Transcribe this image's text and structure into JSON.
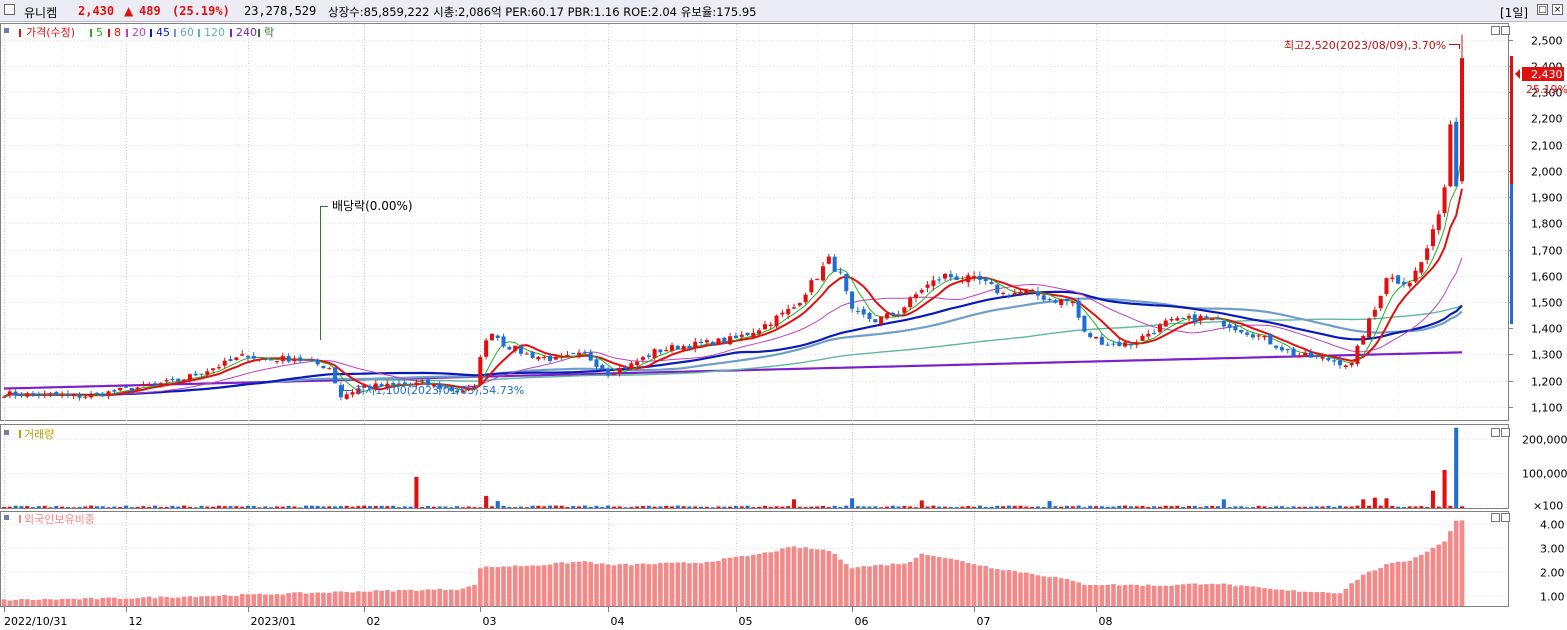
{
  "header": {
    "name": "유니켐",
    "price": "2,430",
    "change_arrow": "▲",
    "change": "489",
    "change_pct": "(25.19%)",
    "volume": "23,278,529",
    "stats": "상장수:85,859,222 시총:2,086억 PER:60.17 PBR:1.16 ROE:2.04 유보율:175.95",
    "period": "[1일]"
  },
  "colors": {
    "up": "#e01010",
    "down": "#1e6ed4",
    "ma5": "#22b022",
    "ma8": "#e01010",
    "ma20": "#c040c0",
    "ma45": "#0a1ab8",
    "ma60": "#6f9ec8",
    "ma120": "#5fb8a0",
    "ma240": "#7a22c8",
    "foreign": "#f28a8a"
  },
  "x_axis_labels": [
    "2022/10/31",
    "12",
    "2023/01",
    "02",
    "03",
    "04",
    "05",
    "06",
    "07",
    "08"
  ],
  "chart_data": {
    "type": "candlestick",
    "price_panel": {
      "legend": [
        "가격(수정)",
        "5",
        "8",
        "20",
        "45",
        "60",
        "120",
        "240",
        "락"
      ],
      "y_ticks": [
        "2,500",
        "2,400",
        "2,300",
        "2,200",
        "2,100",
        "2,000",
        "1,900",
        "1,800",
        "1,700",
        "1,600",
        "1,500",
        "1,400",
        "1,300",
        "1,200",
        "1,100"
      ],
      "ylim": [
        1050,
        2560
      ],
      "current_price_label": "2,430",
      "current_pct_label": "25.19%",
      "annotations": {
        "high": "최고2,520(2023/08/09),3.70%",
        "low": "최저1,100(2023/01/03),54.73%",
        "dividend": "배당락(0.00%)"
      },
      "close_path": [
        [
          0,
          1150
        ],
        [
          14,
          1140
        ],
        [
          30,
          1200
        ],
        [
          38,
          1265
        ],
        [
          42,
          1300
        ],
        [
          44,
          1280
        ],
        [
          50,
          1285
        ],
        [
          56,
          1250
        ],
        [
          58,
          1140
        ],
        [
          62,
          1180
        ],
        [
          66,
          1180
        ],
        [
          72,
          1190
        ],
        [
          78,
          1160
        ],
        [
          81,
          1170
        ],
        [
          82,
          1300
        ],
        [
          84,
          1390
        ],
        [
          86,
          1340
        ],
        [
          90,
          1300
        ],
        [
          95,
          1280
        ],
        [
          100,
          1300
        ],
        [
          104,
          1230
        ],
        [
          108,
          1260
        ],
        [
          112,
          1310
        ],
        [
          116,
          1330
        ],
        [
          120,
          1340
        ],
        [
          126,
          1360
        ],
        [
          130,
          1400
        ],
        [
          136,
          1480
        ],
        [
          140,
          1600
        ],
        [
          142,
          1660
        ],
        [
          144,
          1600
        ],
        [
          146,
          1460
        ],
        [
          150,
          1430
        ],
        [
          154,
          1460
        ],
        [
          158,
          1550
        ],
        [
          162,
          1600
        ],
        [
          168,
          1580
        ],
        [
          172,
          1530
        ],
        [
          176,
          1540
        ],
        [
          180,
          1510
        ],
        [
          184,
          1500
        ],
        [
          186,
          1380
        ],
        [
          190,
          1340
        ],
        [
          194,
          1340
        ],
        [
          200,
          1420
        ],
        [
          206,
          1440
        ],
        [
          210,
          1420
        ],
        [
          216,
          1370
        ],
        [
          222,
          1300
        ],
        [
          228,
          1280
        ],
        [
          232,
          1260
        ],
        [
          234,
          1380
        ],
        [
          236,
          1470
        ],
        [
          238,
          1600
        ],
        [
          240,
          1580
        ],
        [
          242,
          1580
        ],
        [
          244,
          1650
        ],
        [
          246,
          1760
        ],
        [
          248,
          1940
        ],
        [
          250,
          2430
        ]
      ],
      "ma_overlays": [
        "5",
        "8",
        "20",
        "45",
        "60",
        "120",
        "240"
      ]
    },
    "volume_panel": {
      "label": "거래량",
      "y_ticks": [
        "200,000",
        "100,000",
        "×100"
      ],
      "ylim": [
        0,
        240000
      ],
      "spikes": [
        [
          71,
          90000
        ],
        [
          83,
          35000
        ],
        [
          85,
          20000
        ],
        [
          136,
          25000
        ],
        [
          146,
          28000
        ],
        [
          158,
          22000
        ],
        [
          180,
          20000
        ],
        [
          210,
          25000
        ],
        [
          234,
          25000
        ],
        [
          236,
          30000
        ],
        [
          238,
          28000
        ],
        [
          246,
          50000
        ],
        [
          248,
          110000
        ],
        [
          250,
          232000
        ]
      ]
    },
    "foreign_panel": {
      "label": "외국인보유비중",
      "y_ticks": [
        "4.00",
        "3.00",
        "2.00",
        "1.00"
      ],
      "ylim": [
        0.6,
        4.5
      ],
      "path": [
        [
          0,
          0.85
        ],
        [
          20,
          0.92
        ],
        [
          40,
          1.05
        ],
        [
          60,
          1.2
        ],
        [
          78,
          1.3
        ],
        [
          81,
          1.45
        ],
        [
          82,
          2.2
        ],
        [
          92,
          2.3
        ],
        [
          100,
          2.45
        ],
        [
          104,
          2.3
        ],
        [
          120,
          2.4
        ],
        [
          130,
          2.75
        ],
        [
          136,
          3.05
        ],
        [
          142,
          2.9
        ],
        [
          146,
          2.2
        ],
        [
          156,
          2.4
        ],
        [
          158,
          2.8
        ],
        [
          162,
          2.6
        ],
        [
          170,
          2.2
        ],
        [
          182,
          1.75
        ],
        [
          186,
          1.5
        ],
        [
          200,
          1.45
        ],
        [
          208,
          1.55
        ],
        [
          220,
          1.25
        ],
        [
          230,
          1.15
        ],
        [
          234,
          1.9
        ],
        [
          238,
          2.3
        ],
        [
          242,
          2.5
        ],
        [
          246,
          3.0
        ],
        [
          248,
          3.3
        ],
        [
          250,
          4.15
        ]
      ]
    }
  }
}
